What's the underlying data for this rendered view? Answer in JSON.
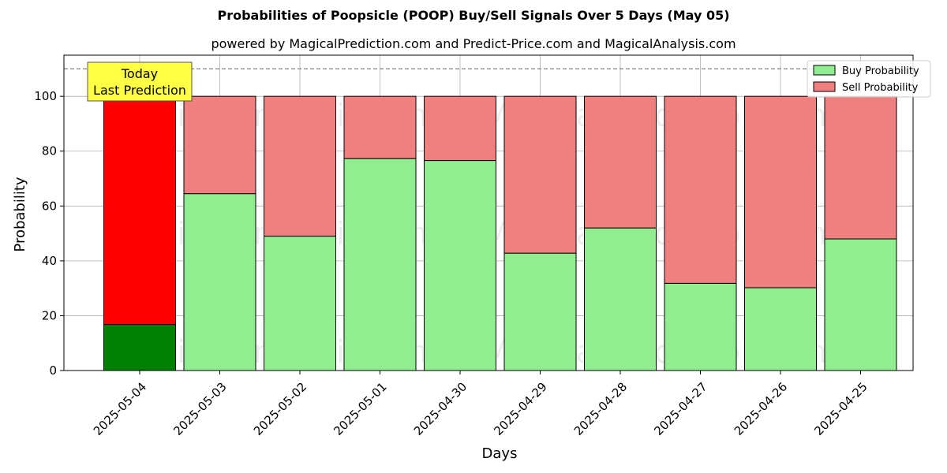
{
  "chart_data": {
    "type": "bar",
    "stacked": true,
    "title": "Probabilities of Poopsicle (POOP) Buy/Sell Signals Over 5 Days (May 05)",
    "subtitle": "powered by MagicalPrediction.com and Predict-Price.com and MagicalAnalysis.com",
    "xlabel": "Days",
    "ylabel": "Probability",
    "ylim": [
      0,
      115
    ],
    "yticks": [
      0,
      20,
      40,
      60,
      80,
      100
    ],
    "threshold_line": 110,
    "categories": [
      "2025-05-04",
      "2025-05-03",
      "2025-05-02",
      "2025-05-01",
      "2025-04-30",
      "2025-04-29",
      "2025-04-28",
      "2025-04-27",
      "2025-04-26",
      "2025-04-25"
    ],
    "series": [
      {
        "name": "Buy Probability",
        "color": "#90ee90",
        "highlight_color": "#008000",
        "values": [
          16.8,
          64.5,
          49.0,
          77.3,
          76.6,
          42.8,
          52.0,
          31.8,
          30.2,
          48.0
        ]
      },
      {
        "name": "Sell Probability",
        "color": "#f08080",
        "highlight_color": "#ff0000",
        "values": [
          83.2,
          35.5,
          51.0,
          22.7,
          23.4,
          57.2,
          48.0,
          68.2,
          69.8,
          52.0
        ]
      }
    ],
    "legend_position": "upper right",
    "grid": true,
    "annotation": {
      "line1": "Today",
      "line2": "Last Prediction",
      "category_index": 0
    },
    "watermarks": [
      "MagicalAnalysis.com",
      "MagicalPrediction.com"
    ]
  }
}
